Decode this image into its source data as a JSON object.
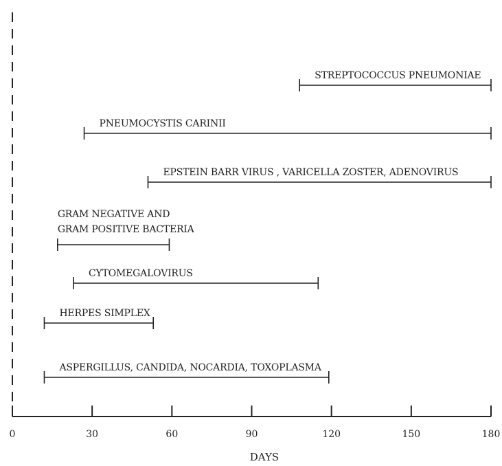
{
  "chart_data": {
    "type": "timeline",
    "xlabel": "DAYS",
    "xlim": [
      0,
      180
    ],
    "xticks": [
      0,
      30,
      60,
      90,
      120,
      150,
      180
    ],
    "series": [
      {
        "label": "STREPTOCOCCUS PNEUMONIAE",
        "start": 108,
        "end": 180
      },
      {
        "label": "PNEUMOCYSTIS CARINII",
        "start": 27,
        "end": 180
      },
      {
        "label": "EPSTEIN BARR VIRUS , VARICELLA ZOSTER, ADENOVIRUS",
        "start": 51,
        "end": 180
      },
      {
        "label": "GRAM NEGATIVE AND\nGRAM POSITIVE BACTERIA",
        "start": 17,
        "end": 59
      },
      {
        "label": "CYTOMEGALOVIRUS",
        "start": 23,
        "end": 115
      },
      {
        "label": "HERPES SIMPLEX",
        "start": 12,
        "end": 53
      },
      {
        "label": "ASPERGILLUS, CANDIDA, NOCARDIA, TOXOPLASMA",
        "start": 12,
        "end": 119
      }
    ]
  }
}
